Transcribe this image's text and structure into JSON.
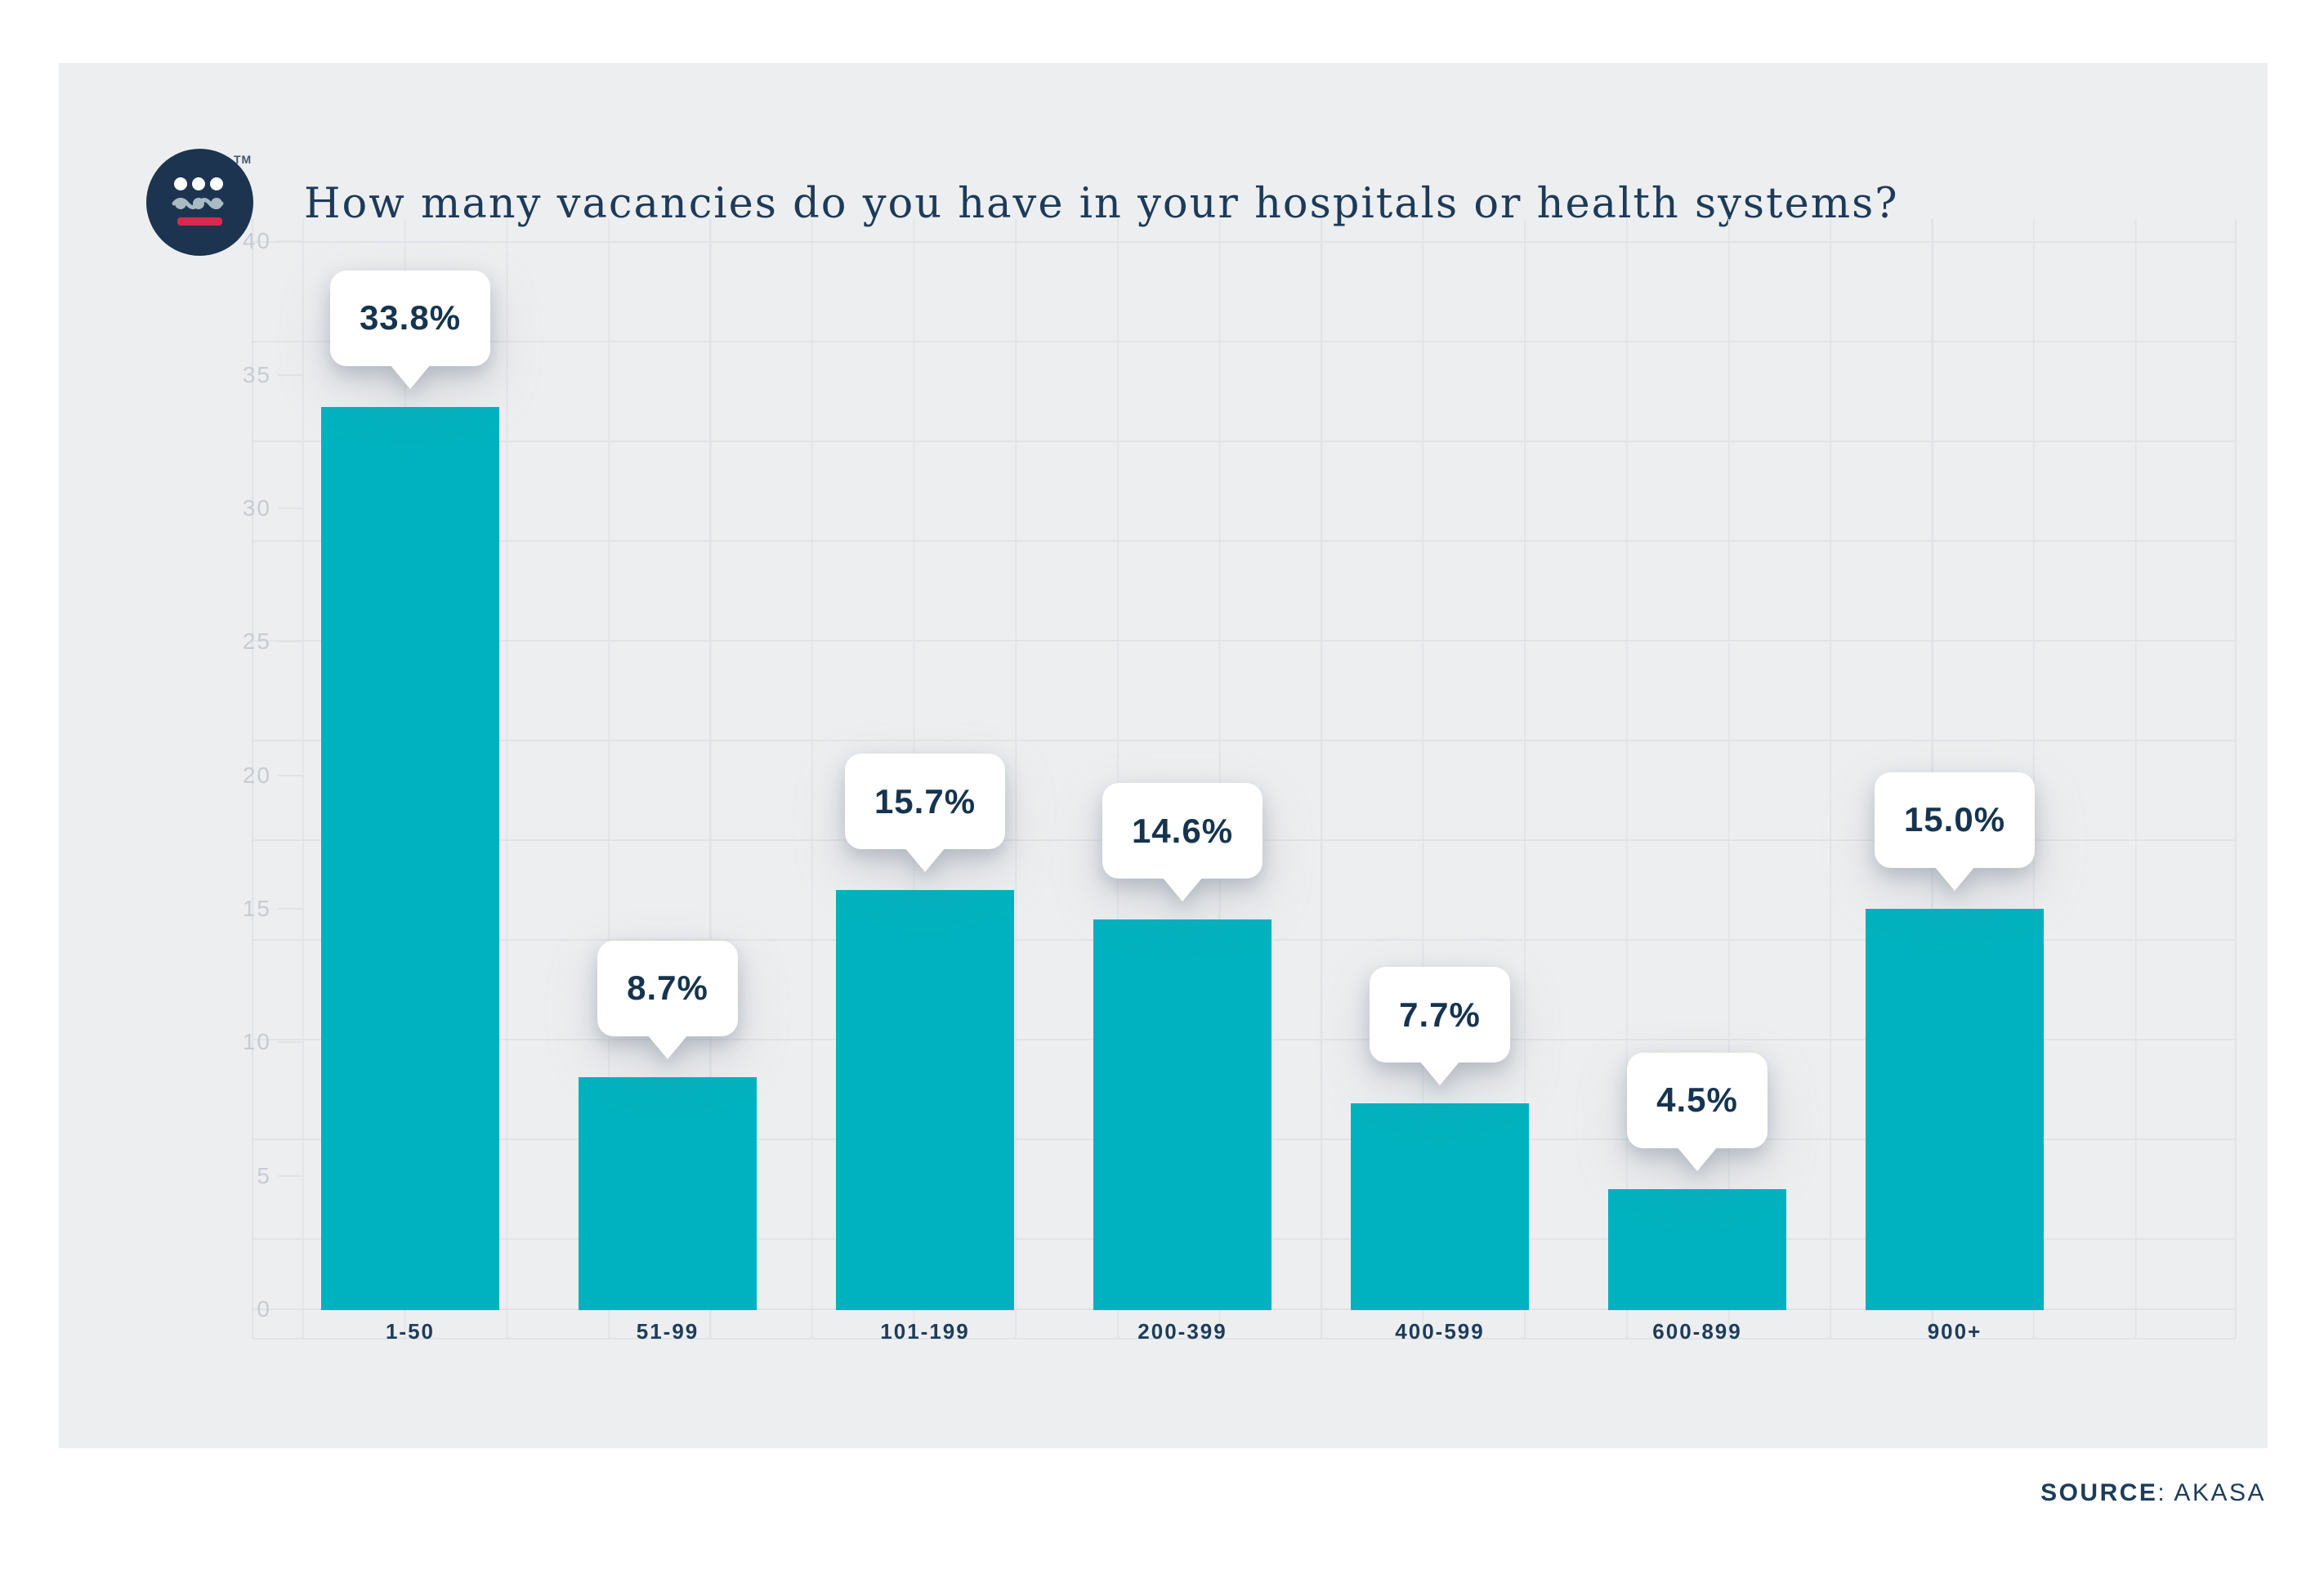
{
  "header": {
    "title": "How many vacancies do you have in your hospitals or health systems?",
    "trademark": "TM"
  },
  "logo": {
    "name": "akasa-logo",
    "circle_color": "#1d3450",
    "dots_color": "#ffffff",
    "wave_color": "#a8bac2",
    "bar_color": "#d8294d"
  },
  "chart_data": {
    "type": "bar",
    "title": "How many vacancies do you have in your hospitals or health systems?",
    "categories": [
      "1-50",
      "51-99",
      "101-199",
      "200-399",
      "400-599",
      "600-899",
      "900+"
    ],
    "values": [
      33.8,
      8.7,
      15.7,
      14.6,
      7.7,
      4.5,
      15.0
    ],
    "value_suffix": "%",
    "y_ticks": [
      40,
      35,
      30,
      25,
      20,
      15,
      10,
      5,
      0
    ],
    "ylim": [
      0,
      40
    ],
    "xlabel": "",
    "ylabel": "",
    "grid": "on",
    "legend": "none",
    "bar_color": "#00b2bf",
    "tooltip_bg": "#ffffff",
    "tooltip_text_color": "#16344f",
    "axis_label_color": "#c6ccd2",
    "category_label_color": "#1e3c5a"
  },
  "source": {
    "label": "SOURCE",
    "separator": ": ",
    "name": "AKASA"
  }
}
